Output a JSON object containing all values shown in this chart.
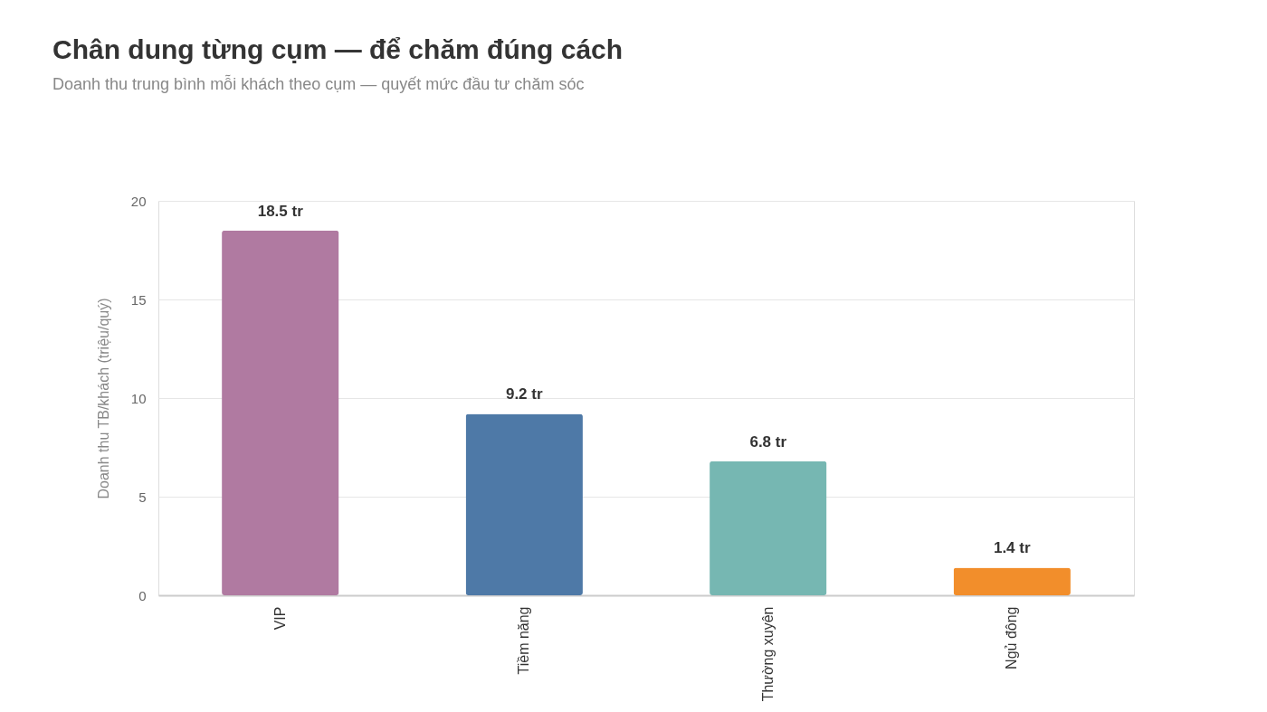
{
  "chart_data": {
    "type": "bar",
    "title": "Chân dung từng cụm — để chăm đúng cách",
    "subtitle": "Doanh thu trung bình mỗi khách theo cụm — quyết mức đầu tư chăm sóc",
    "ylabel": "Doanh thu TB/khách (triệu/quý)",
    "categories": [
      "VIP",
      "Tiềm năng",
      "Thường xuyên",
      "Ngủ đông"
    ],
    "values": [
      18.5,
      9.2,
      6.8,
      1.4
    ],
    "colors": [
      "#b07aa1",
      "#4e79a7",
      "#76b7b2",
      "#f28e2b"
    ],
    "value_labels": [
      "18.5 tr",
      "9.2 tr",
      "6.8 tr",
      "1.4 tr"
    ],
    "ylim": [
      0,
      20
    ],
    "yticks": [
      0,
      5,
      10,
      15,
      20
    ],
    "grid": "y",
    "legend": false
  }
}
